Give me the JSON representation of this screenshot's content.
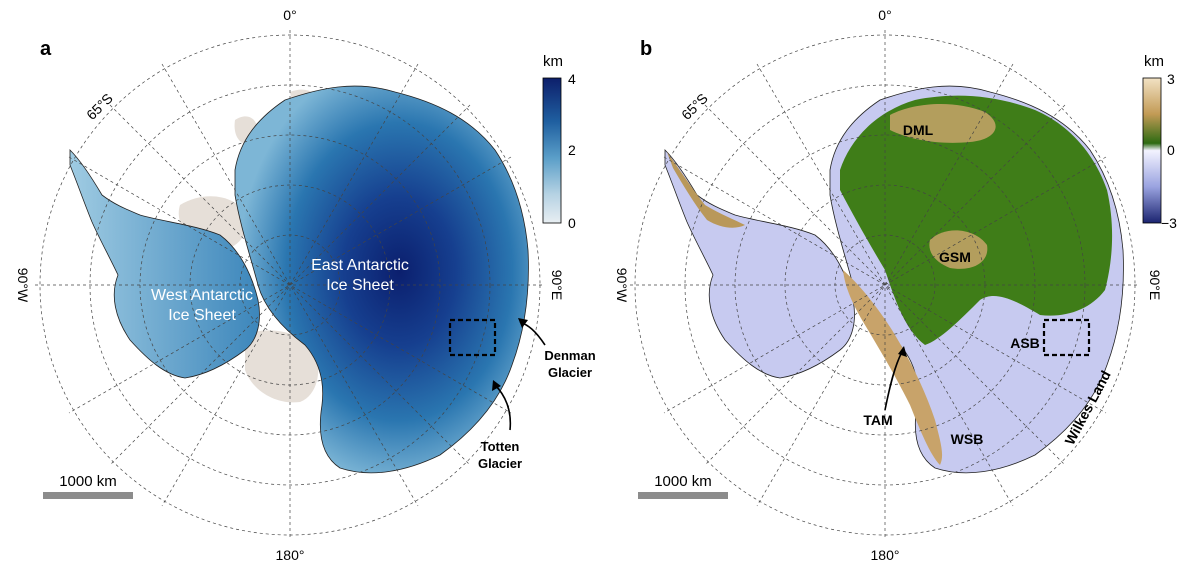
{
  "panel_a": {
    "letter": "a",
    "lat_label": "65°S",
    "lon_top": "0°",
    "lon_left": "90°W",
    "lon_right": "90°E",
    "lon_bottom": "180°",
    "region_west": [
      "West Antarctic",
      "Ice Sheet"
    ],
    "region_east": [
      "East Antarctic",
      "Ice Sheet"
    ],
    "callout_denman": [
      "Denman",
      "Glacier"
    ],
    "callout_totten": [
      "Totten",
      "Glacier"
    ],
    "scale_label": "1000 km",
    "colorbar": {
      "unit": "km",
      "ticks": [
        "4",
        "2",
        "0"
      ],
      "colors": [
        "#0d1f6b",
        "#1f5fa0",
        "#5a9ec8",
        "#b5d2e3",
        "#e8eef2"
      ]
    }
  },
  "panel_b": {
    "letter": "b",
    "lat_label": "65°S",
    "lon_top": "0°",
    "lon_left": "90°W",
    "lon_right": "90°E",
    "lon_bottom": "180°",
    "labels": {
      "dml": "DML",
      "gsm": "GSM",
      "asb": "ASB",
      "tam": "TAM",
      "wsb": "WSB",
      "wilkes": "Wilkes Land"
    },
    "scale_label": "1000 km",
    "colorbar": {
      "unit": "km",
      "ticks": [
        "3",
        "0",
        "−3"
      ],
      "colors": [
        "#f2e2c4",
        "#c29a55",
        "#2d6b12",
        "#f3f3ff",
        "#9aa3e0",
        "#1b2470"
      ]
    }
  },
  "colors": {
    "ice_deep": "#0b2a7a",
    "ice_shallow": "#d5e6f0",
    "shelf": "#e6dfd8",
    "land_green": "#3f7d18",
    "land_tan": "#c8a36a",
    "below_sea": "#c7caf0"
  }
}
